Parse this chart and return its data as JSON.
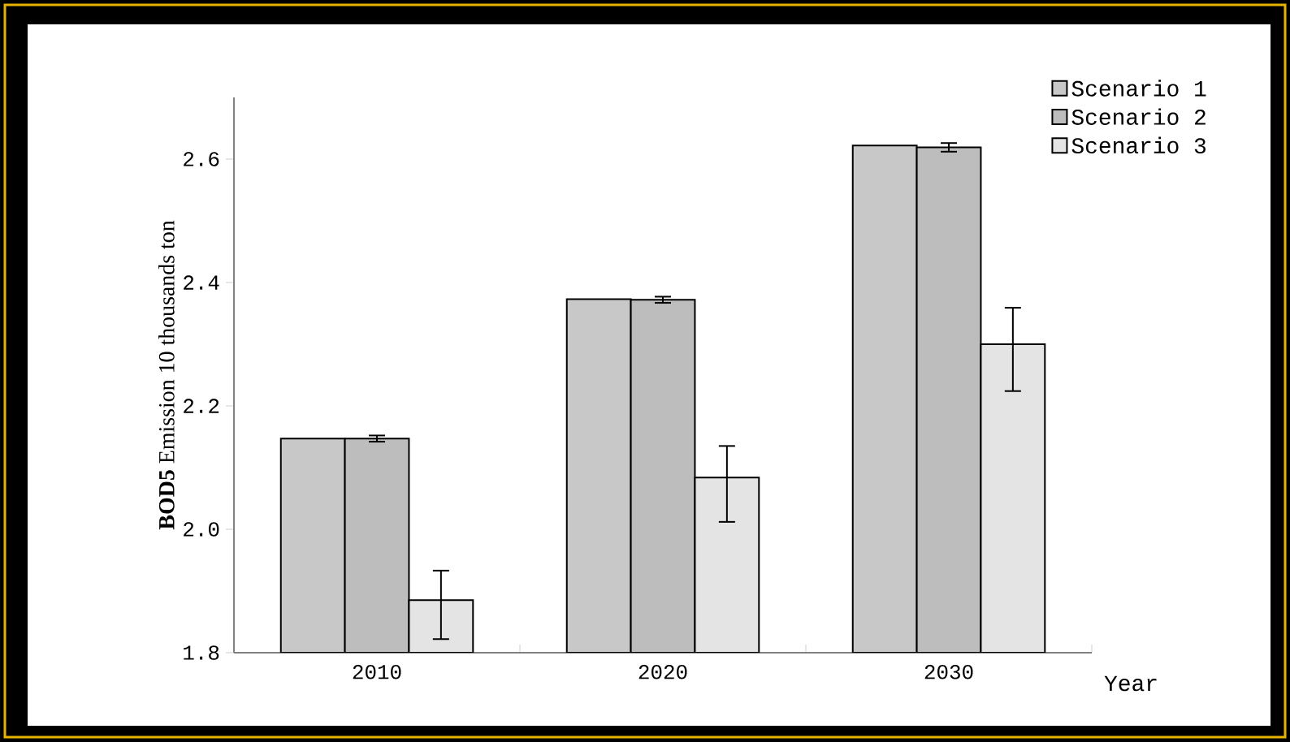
{
  "chart_data": {
    "type": "bar",
    "categories": [
      "2010",
      "2020",
      "2030"
    ],
    "xlabel": "Year",
    "ylabel": "**BOD5** Emission 10 thousands ton",
    "ylim": [
      1.8,
      2.7
    ],
    "yticks": [
      {
        "value": 1.8,
        "label": "1.8"
      },
      {
        "value": 2.0,
        "label": "2.0"
      },
      {
        "value": 2.2,
        "label": "2.2"
      },
      {
        "value": 2.4,
        "label": "2.4"
      },
      {
        "value": 2.6,
        "label": "2.6"
      }
    ],
    "series": [
      {
        "name": "Scenario 1",
        "color": "#c8c8c8",
        "values": [
          2.147,
          2.373,
          2.622
        ]
      },
      {
        "name": "Scenario 2",
        "color": "#bdbdbd",
        "values": [
          2.147,
          2.372,
          2.619
        ],
        "errors": [
          0.005,
          0.005,
          0.007
        ]
      },
      {
        "name": "Scenario 3",
        "color": "#e4e4e4",
        "values": [
          1.885,
          2.084,
          2.3
        ],
        "errors": [
          [
            1.822,
            1.933
          ],
          [
            2.012,
            2.135
          ],
          [
            2.224,
            2.359
          ]
        ]
      }
    ],
    "legend": "top right",
    "grid": false
  }
}
